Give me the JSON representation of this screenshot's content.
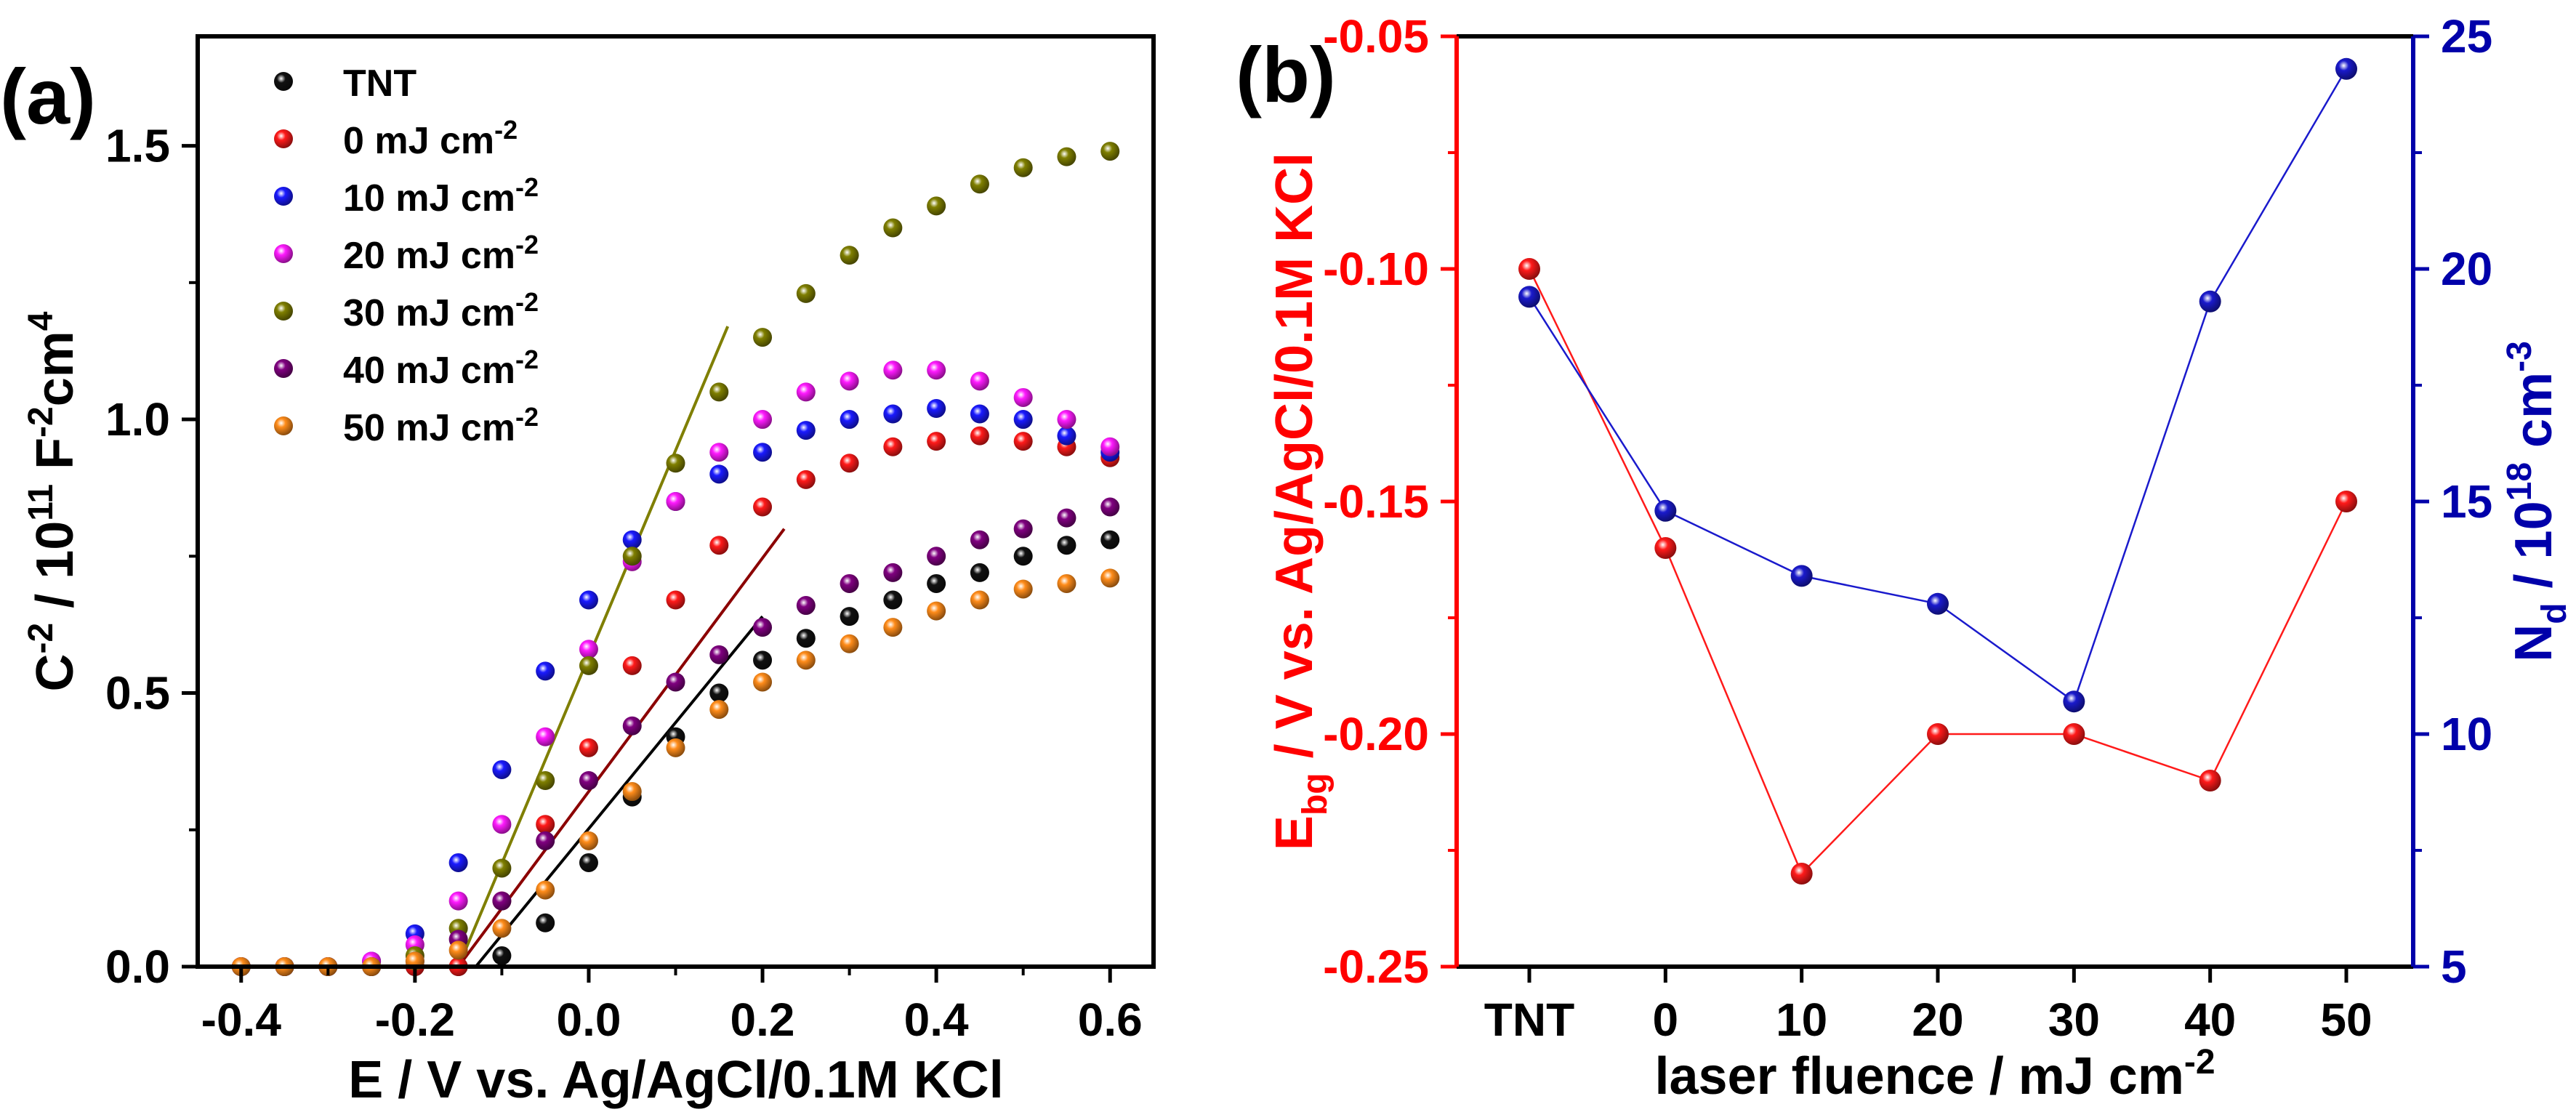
{
  "chart_data": [
    {
      "panel_label": "(a)",
      "type": "scatter",
      "xlabel": "E / V vs. Ag/AgCl/0.1M KCl",
      "ylabel": {
        "base": "C",
        "sup1": "-2",
        "mid": " / 10",
        "sup2": "11",
        "rest": " F",
        "sup3": "-2",
        "tail": "cm",
        "sup4": "4"
      },
      "xlim": [
        -0.45,
        0.65
      ],
      "ylim": [
        0,
        1.7
      ],
      "xticks": [
        -0.4,
        -0.2,
        0.0,
        0.2,
        0.4,
        0.6
      ],
      "xtick_labels": [
        "-0.4",
        "-0.2",
        "0.0",
        "0.2",
        "0.4",
        "0.6"
      ],
      "yticks": [
        0,
        0.5,
        1.0,
        1.5
      ],
      "ytick_labels": [
        "0.0",
        "0.5",
        "1.0",
        "1.5"
      ],
      "legend_position": "top-left",
      "legend_unit": " mJ cm",
      "legend_unit_sup": "-2",
      "series": [
        {
          "name": "TNT",
          "color": "#111111",
          "x": [
            -0.4,
            -0.35,
            -0.3,
            -0.25,
            -0.2,
            -0.15,
            -0.1,
            -0.05,
            0.0,
            0.05,
            0.1,
            0.15,
            0.2,
            0.25,
            0.3,
            0.35,
            0.4,
            0.45,
            0.5,
            0.55,
            0.6
          ],
          "y": [
            0,
            0,
            0,
            0,
            0,
            0,
            0.02,
            0.08,
            0.19,
            0.31,
            0.42,
            0.5,
            0.56,
            0.6,
            0.64,
            0.67,
            0.7,
            0.72,
            0.75,
            0.77,
            0.78
          ]
        },
        {
          "name": "0",
          "color": "#ff1a1a",
          "x": [
            -0.4,
            -0.35,
            -0.3,
            -0.25,
            -0.2,
            -0.15,
            -0.1,
            -0.05,
            0.0,
            0.05,
            0.1,
            0.15,
            0.2,
            0.25,
            0.3,
            0.35,
            0.4,
            0.45,
            0.5,
            0.55,
            0.6
          ],
          "y": [
            0,
            0,
            0,
            0,
            0,
            0,
            0.12,
            0.26,
            0.4,
            0.55,
            0.67,
            0.77,
            0.84,
            0.89,
            0.92,
            0.95,
            0.96,
            0.97,
            0.96,
            0.95,
            0.93
          ]
        },
        {
          "name": "10",
          "color": "#1a1aff",
          "x": [
            -0.4,
            -0.35,
            -0.3,
            -0.25,
            -0.2,
            -0.15,
            -0.1,
            -0.05,
            0.0,
            0.05,
            0.1,
            0.15,
            0.2,
            0.25,
            0.3,
            0.35,
            0.4,
            0.45,
            0.5,
            0.55,
            0.6
          ],
          "y": [
            0,
            0,
            0,
            0.01,
            0.06,
            0.19,
            0.36,
            0.54,
            0.67,
            0.78,
            0.85,
            0.9,
            0.94,
            0.98,
            1.0,
            1.01,
            1.02,
            1.01,
            1.0,
            0.97,
            0.94
          ]
        },
        {
          "name": "20",
          "color": "#ff1aff",
          "x": [
            -0.4,
            -0.35,
            -0.3,
            -0.25,
            -0.2,
            -0.15,
            -0.1,
            -0.05,
            0.0,
            0.05,
            0.1,
            0.15,
            0.2,
            0.25,
            0.3,
            0.35,
            0.4,
            0.45,
            0.5,
            0.55,
            0.6
          ],
          "y": [
            0,
            0,
            0,
            0.01,
            0.04,
            0.12,
            0.26,
            0.42,
            0.58,
            0.74,
            0.85,
            0.94,
            1.0,
            1.05,
            1.07,
            1.09,
            1.09,
            1.07,
            1.04,
            1.0,
            0.95
          ]
        },
        {
          "name": "30",
          "color": "#7f7f00",
          "x": [
            -0.4,
            -0.35,
            -0.3,
            -0.25,
            -0.2,
            -0.15,
            -0.1,
            -0.05,
            0.0,
            0.05,
            0.1,
            0.15,
            0.2,
            0.25,
            0.3,
            0.35,
            0.4,
            0.45,
            0.5,
            0.55,
            0.6
          ],
          "y": [
            0,
            0,
            0,
            0,
            0.02,
            0.07,
            0.18,
            0.34,
            0.55,
            0.75,
            0.92,
            1.05,
            1.15,
            1.23,
            1.3,
            1.35,
            1.39,
            1.43,
            1.46,
            1.48,
            1.49
          ]
        },
        {
          "name": "40",
          "color": "#800080",
          "x": [
            -0.4,
            -0.35,
            -0.3,
            -0.25,
            -0.2,
            -0.15,
            -0.1,
            -0.05,
            0.0,
            0.05,
            0.1,
            0.15,
            0.2,
            0.25,
            0.3,
            0.35,
            0.4,
            0.45,
            0.5,
            0.55,
            0.6
          ],
          "y": [
            0,
            0,
            0,
            0,
            0.01,
            0.05,
            0.12,
            0.23,
            0.34,
            0.44,
            0.52,
            0.57,
            0.62,
            0.66,
            0.7,
            0.72,
            0.75,
            0.78,
            0.8,
            0.82,
            0.84
          ]
        },
        {
          "name": "50",
          "color": "#ff8c1a",
          "x": [
            -0.4,
            -0.35,
            -0.3,
            -0.25,
            -0.2,
            -0.15,
            -0.1,
            -0.05,
            0.0,
            0.05,
            0.1,
            0.15,
            0.2,
            0.25,
            0.3,
            0.35,
            0.4,
            0.45,
            0.5,
            0.55,
            0.6
          ],
          "y": [
            0,
            0,
            0,
            0,
            0.01,
            0.03,
            0.07,
            0.14,
            0.23,
            0.32,
            0.4,
            0.47,
            0.52,
            0.56,
            0.59,
            0.62,
            0.65,
            0.67,
            0.69,
            0.7,
            0.71
          ]
        }
      ],
      "fit_lines": [
        {
          "color": "#7f7f00",
          "x": [
            -0.15,
            0.16
          ],
          "y": [
            0.0,
            1.17
          ]
        },
        {
          "color": "#8b0000",
          "x": [
            -0.15,
            0.225
          ],
          "y": [
            0.0,
            0.8
          ]
        },
        {
          "color": "#000000",
          "x": [
            -0.13,
            0.2
          ],
          "y": [
            0.0,
            0.64
          ]
        }
      ]
    },
    {
      "panel_label": "(b)",
      "type": "line",
      "xlabel": {
        "text": "laser fluence / mJ cm",
        "sup": "-2"
      },
      "ylabel_left": {
        "base": "E",
        "sub": "bg",
        "rest": " / V vs. Ag/AgCl/0.1M KCl"
      },
      "ylabel_right": {
        "base": "N",
        "sub": "d",
        "mid": " / 10",
        "sup": "18",
        "rest": " cm",
        "sup2": "-3"
      },
      "categories": [
        "TNT",
        "0",
        "10",
        "20",
        "30",
        "40",
        "50"
      ],
      "ylim_left": [
        -0.25,
        -0.05
      ],
      "yticks_left": [
        -0.25,
        -0.2,
        -0.15,
        -0.1,
        -0.05
      ],
      "ytick_labels_left": [
        "-0.25",
        "-0.20",
        "-0.15",
        "-0.10",
        "-0.05"
      ],
      "ylim_right": [
        5,
        25
      ],
      "yticks_right": [
        5,
        10,
        15,
        20,
        25
      ],
      "ytick_labels_right": [
        "5",
        "10",
        "15",
        "20",
        "25"
      ],
      "series": [
        {
          "name": "E_bg",
          "axis": "left",
          "color": "#ff1a1a",
          "values": [
            -0.1,
            -0.16,
            -0.23,
            -0.2,
            -0.2,
            -0.21,
            -0.15
          ]
        },
        {
          "name": "N_d",
          "axis": "right",
          "color": "#1a1acc",
          "values": [
            19.4,
            14.8,
            13.4,
            12.8,
            10.7,
            19.3,
            24.3
          ]
        }
      ],
      "colors": {
        "left_axis": "#ff0000",
        "right_axis": "#0000aa"
      }
    }
  ]
}
